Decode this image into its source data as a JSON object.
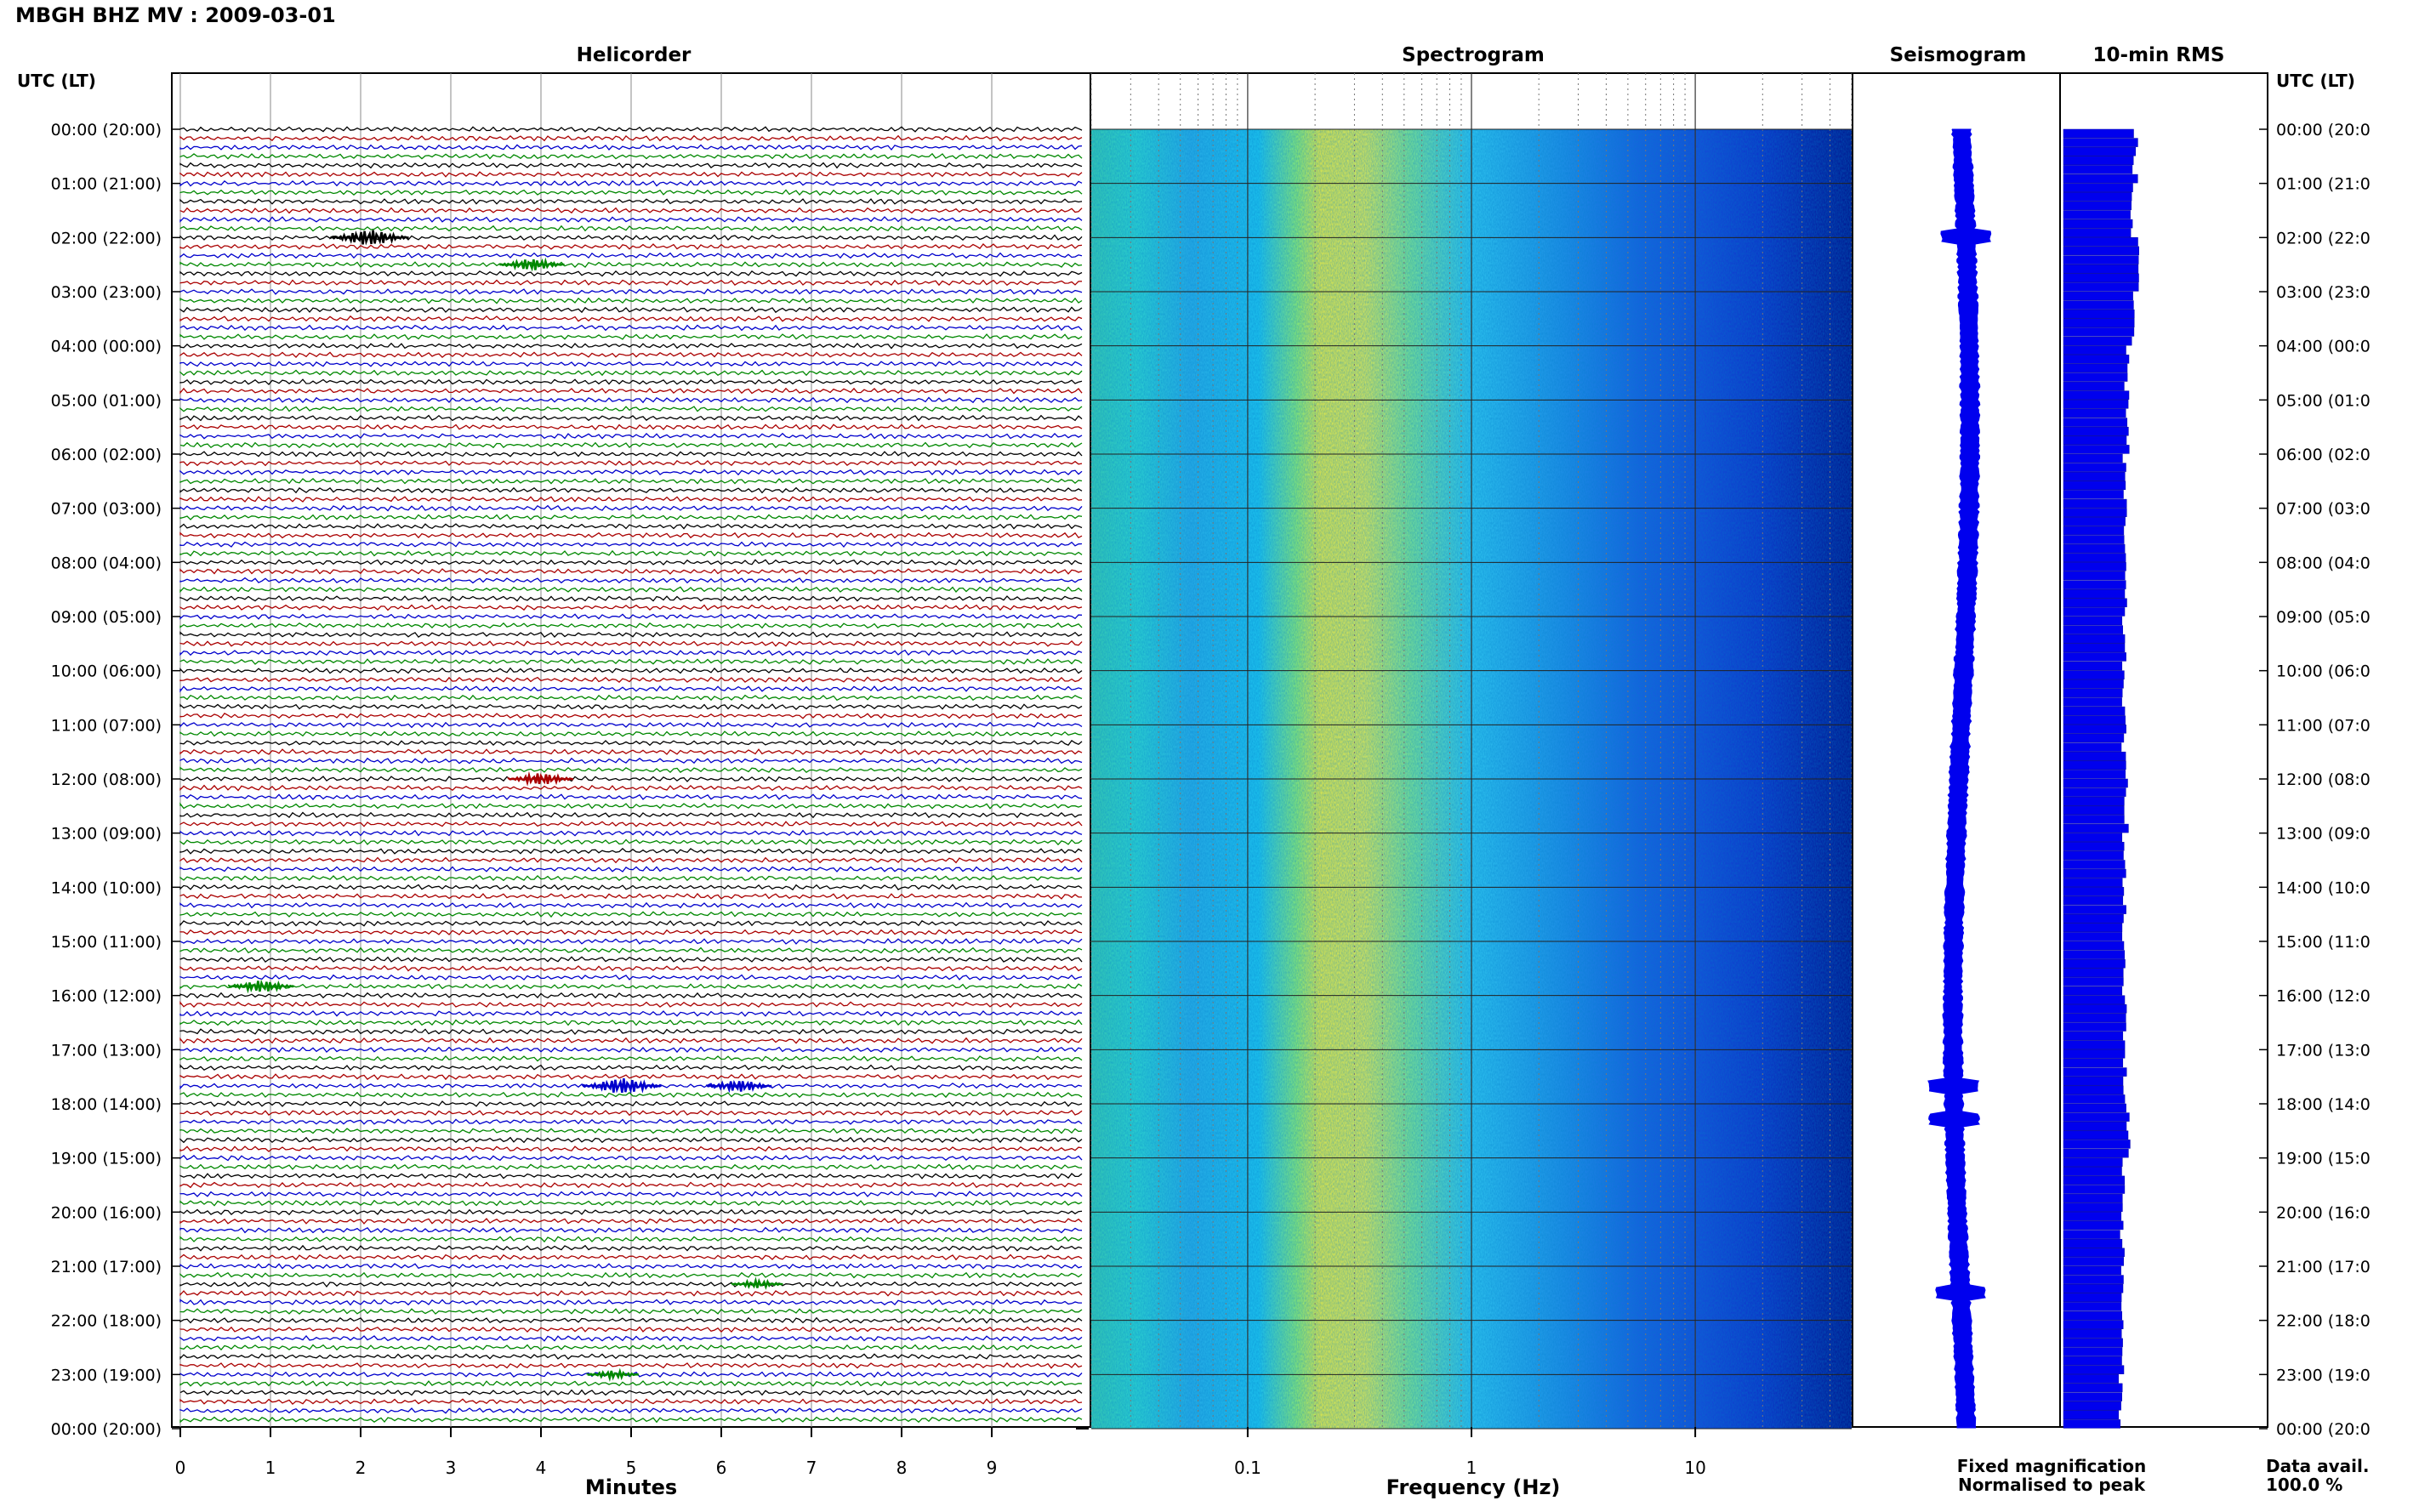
{
  "header": {
    "title": "MBGH BHZ MV : 2009-03-01"
  },
  "panels": {
    "helicorder": "Helicorder",
    "spectrogram": "Spectrogram",
    "seismogram": "Seismogram",
    "rms": "10-min RMS"
  },
  "time_axis_label": "UTC (LT)",
  "hour_labels": [
    "00:00 (20:00)",
    "01:00 (21:00)",
    "02:00 (22:00)",
    "03:00 (23:00)",
    "04:00 (00:00)",
    "05:00 (01:00)",
    "06:00 (02:00)",
    "07:00 (03:00)",
    "08:00 (04:00)",
    "09:00 (05:00)",
    "10:00 (06:00)",
    "11:00 (07:00)",
    "12:00 (08:00)",
    "13:00 (09:00)",
    "14:00 (10:00)",
    "15:00 (11:00)",
    "16:00 (12:00)",
    "17:00 (13:00)",
    "18:00 (14:00)",
    "19:00 (15:00)",
    "20:00 (16:00)",
    "21:00 (17:00)",
    "22:00 (18:00)",
    "23:00 (19:00)",
    "00:00 (20:00)"
  ],
  "hour_labels_right": [
    "00:00 (20:0",
    "01:00 (21:0",
    "02:00 (22:0",
    "03:00 (23:0",
    "04:00 (00:0",
    "05:00 (01:0",
    "06:00 (02:0",
    "07:00 (03:0",
    "08:00 (04:0",
    "09:00 (05:0",
    "10:00 (06:0",
    "11:00 (07:0",
    "12:00 (08:0",
    "13:00 (09:0",
    "14:00 (10:0",
    "15:00 (11:0",
    "16:00 (12:0",
    "17:00 (13:0",
    "18:00 (14:0",
    "19:00 (15:0",
    "20:00 (16:0",
    "21:00 (17:0",
    "22:00 (18:0",
    "23:00 (19:0",
    "00:00 (20:0"
  ],
  "legend": {
    "fixed": "Fixed magnification",
    "normalised": "Normalised to peak",
    "fixed_color": "#0000ee",
    "normalised_color": "#ee0000"
  },
  "data_avail": {
    "label": "Data avail.",
    "value": "100.0 %"
  },
  "chart_data": [
    {
      "type": "line",
      "name": "helicorder",
      "title": "Helicorder",
      "xlabel": "Minutes",
      "x_ticks": [
        "0",
        "1",
        "2",
        "3",
        "4",
        "5",
        "6",
        "7",
        "8",
        "9"
      ],
      "xlim": [
        0,
        10
      ],
      "rows_per_hour": 6,
      "hours": 24,
      "trace_colors": [
        "#000000",
        "#aa0000",
        "#0000cc",
        "#008800"
      ],
      "events": [
        {
          "hour": 2.0,
          "minute": 2.1,
          "amplitude": 4,
          "color": "#000000"
        },
        {
          "hour": 2.5,
          "minute": 3.9,
          "amplitude": 3,
          "color": "#008800"
        },
        {
          "hour": 12.0,
          "minute": 4.0,
          "amplitude": 3,
          "color": "#aa0000"
        },
        {
          "hour": 15.83,
          "minute": 0.9,
          "amplitude": 3,
          "color": "#008800"
        },
        {
          "hour": 17.67,
          "minute": 4.9,
          "amplitude": 4,
          "color": "#0000cc"
        },
        {
          "hour": 17.67,
          "minute": 6.2,
          "amplitude": 3,
          "color": "#0000cc"
        },
        {
          "hour": 21.33,
          "minute": 6.4,
          "amplitude": 2,
          "color": "#008800"
        },
        {
          "hour": 23.0,
          "minute": 4.8,
          "amplitude": 2,
          "color": "#008800"
        }
      ]
    },
    {
      "type": "heatmap",
      "name": "spectrogram",
      "title": "Spectrogram",
      "xlabel": "Frequency (Hz)",
      "x_scale": "log",
      "xlim": [
        0.02,
        50
      ],
      "x_ticks": [
        "0.1",
        "1",
        "10"
      ],
      "peak_band_hz": [
        0.2,
        0.5
      ],
      "colormap": "jet"
    },
    {
      "type": "line",
      "name": "seismogram",
      "title": "Seismogram",
      "events_hour": [
        2.0,
        17.67,
        18.3,
        21.5
      ]
    },
    {
      "type": "bar",
      "name": "rms",
      "title": "10-min RMS",
      "orientation": "horizontal",
      "bar_color": "#0000ee",
      "hourly_relative_level": [
        1.0,
        0.95,
        1.05,
        0.95,
        0.88,
        0.9,
        0.85,
        0.85,
        0.85,
        0.84,
        0.84,
        0.84,
        0.88,
        0.84,
        0.84,
        0.83,
        0.86,
        0.85,
        0.9,
        0.84,
        0.82,
        0.82,
        0.81,
        0.8
      ]
    }
  ]
}
